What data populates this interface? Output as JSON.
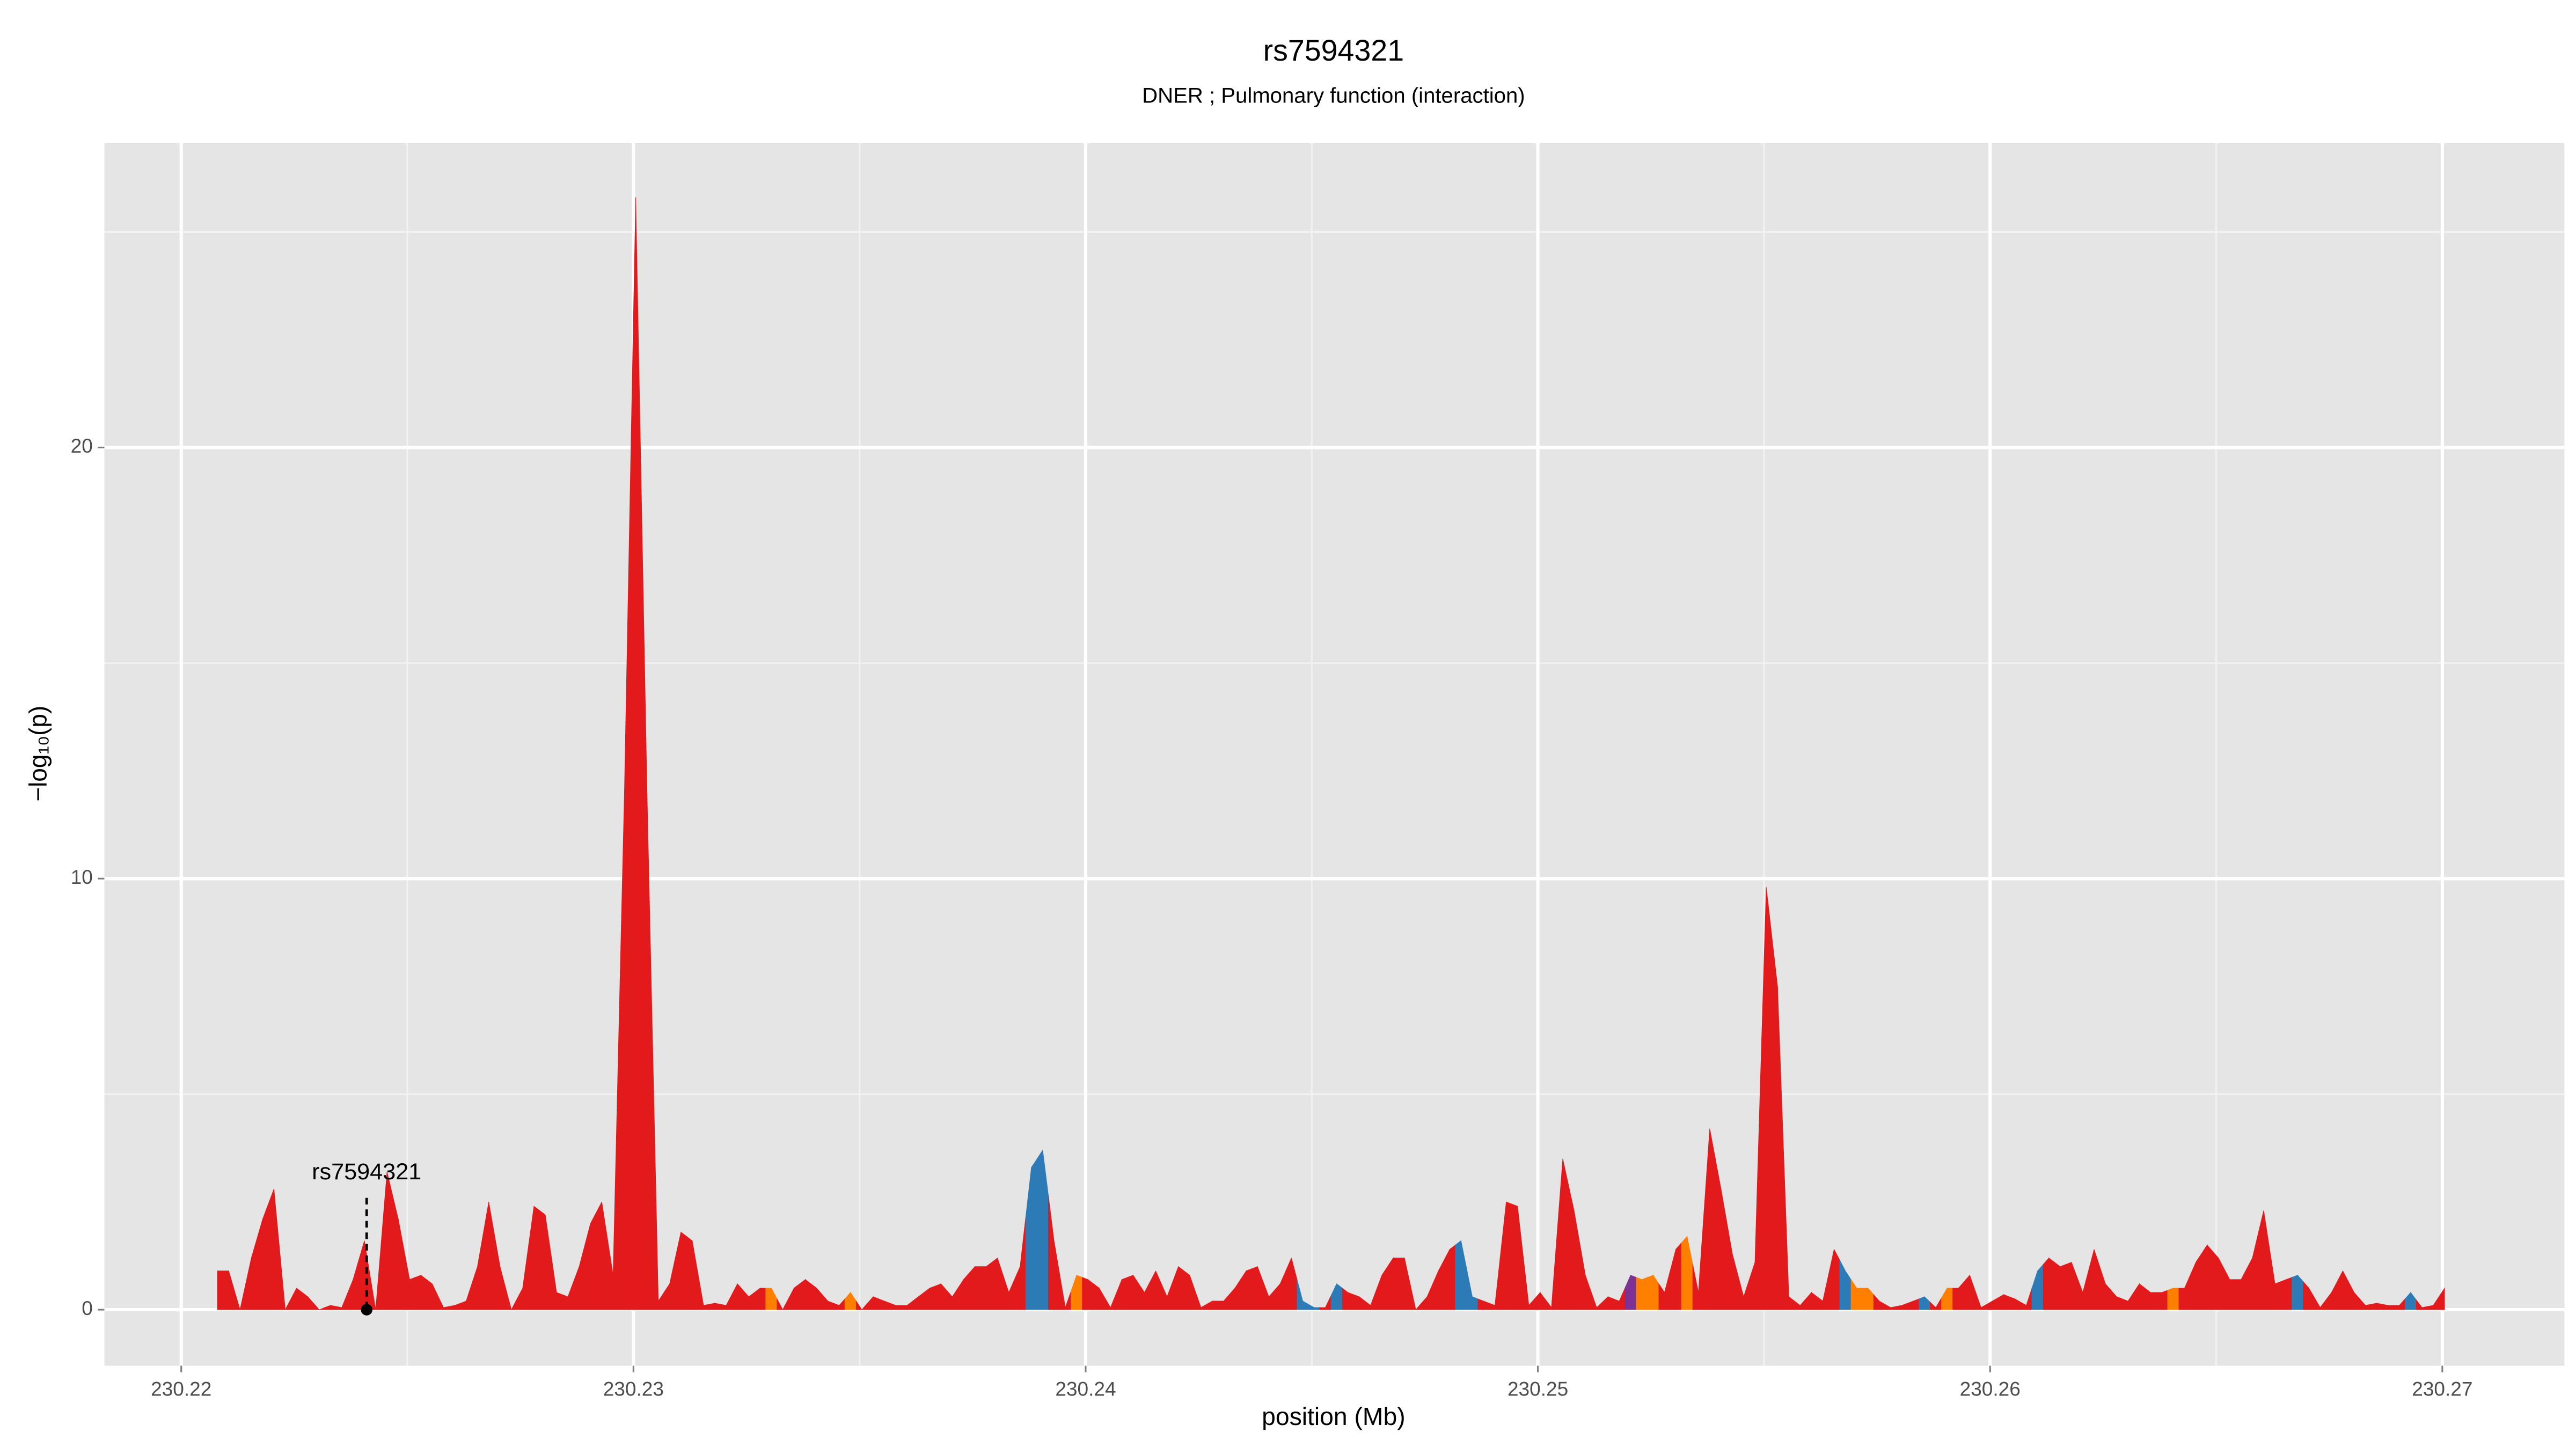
{
  "chart_data": {
    "type": "area",
    "title": "rs7594321",
    "subtitle": "DNER ; Pulmonary function (interaction)",
    "xlabel": "position (Mb)",
    "ylabel": "−log₁₀(p)",
    "xlim": [
      230.2183,
      230.2727
    ],
    "ylim": [
      -1.3,
      27.06
    ],
    "xticks": [
      230.22,
      230.23,
      230.24,
      230.25,
      230.26,
      230.27
    ],
    "yticks": [
      0,
      10,
      20
    ],
    "xminor": [
      230.225,
      230.235,
      230.245,
      230.255,
      230.265
    ],
    "yminor": [
      5,
      15,
      25
    ],
    "grid": true,
    "annotation": {
      "text": "rs7594321",
      "x": 230.2241,
      "y": 0
    },
    "x": [
      230.2208,
      230.22105,
      230.2213,
      230.22155,
      230.2218,
      230.22205,
      230.2223,
      230.22255,
      230.2228,
      230.22305,
      230.2233,
      230.22355,
      230.2238,
      230.22405,
      230.2243,
      230.22455,
      230.2248,
      230.22505,
      230.2253,
      230.22555,
      230.2258,
      230.22605,
      230.2263,
      230.22655,
      230.2268,
      230.22705,
      230.2273,
      230.22755,
      230.2278,
      230.22805,
      230.2283,
      230.22855,
      230.2288,
      230.22905,
      230.2293,
      230.22955,
      230.2298,
      230.23005,
      230.2303,
      230.23055,
      230.2308,
      230.23105,
      230.2313,
      230.23155,
      230.2318,
      230.23205,
      230.2323,
      230.23255,
      230.2328,
      230.23305,
      230.2333,
      230.23355,
      230.2338,
      230.23405,
      230.2343,
      230.23455,
      230.2348,
      230.23505,
      230.2353,
      230.23555,
      230.2358,
      230.23605,
      230.2363,
      230.23655,
      230.2368,
      230.23705,
      230.2373,
      230.23755,
      230.2378,
      230.23805,
      230.2383,
      230.23855,
      230.2388,
      230.23905,
      230.2393,
      230.23955,
      230.2398,
      230.24005,
      230.2403,
      230.24055,
      230.2408,
      230.24105,
      230.2413,
      230.24155,
      230.2418,
      230.24205,
      230.2423,
      230.24255,
      230.2428,
      230.24305,
      230.2433,
      230.24355,
      230.2438,
      230.24405,
      230.2443,
      230.24455,
      230.2448,
      230.24505,
      230.2453,
      230.24555,
      230.2458,
      230.24605,
      230.2463,
      230.24655,
      230.2468,
      230.24705,
      230.2473,
      230.24755,
      230.2478,
      230.24805,
      230.2483,
      230.24855,
      230.2488,
      230.24905,
      230.2493,
      230.24955,
      230.2498,
      230.25005,
      230.2503,
      230.25055,
      230.2508,
      230.25105,
      230.2513,
      230.25155,
      230.2518,
      230.25205,
      230.2523,
      230.25255,
      230.2528,
      230.25305,
      230.2533,
      230.25355,
      230.2538,
      230.25405,
      230.2543,
      230.25455,
      230.2548,
      230.25505,
      230.2553,
      230.25555,
      230.2558,
      230.25605,
      230.2563,
      230.25655,
      230.2568,
      230.25705,
      230.2573,
      230.25755,
      230.2578,
      230.25805,
      230.2583,
      230.25855,
      230.2588,
      230.25905,
      230.2593,
      230.25955,
      230.2598,
      230.26005,
      230.2603,
      230.26055,
      230.2608,
      230.26105,
      230.2613,
      230.26155,
      230.2618,
      230.26205,
      230.2623,
      230.26255,
      230.2628,
      230.26305,
      230.2633,
      230.26355,
      230.2638,
      230.26405,
      230.2643,
      230.26455,
      230.2648,
      230.26505,
      230.2653,
      230.26555,
      230.2658,
      230.26605,
      230.2663,
      230.26655,
      230.2668,
      230.26705,
      230.2673,
      230.26755,
      230.2678,
      230.26805,
      230.2683,
      230.26855,
      230.2688,
      230.26905,
      230.2693,
      230.26955,
      230.2698,
      230.27005
    ],
    "values": [
      0.9,
      0.9,
      0,
      1.2,
      2.1,
      2.8,
      0,
      0.5,
      0.3,
      0,
      0.1,
      0.05,
      0.7,
      1.6,
      0,
      3.2,
      2.1,
      0.7,
      0.8,
      0.6,
      0.05,
      0.1,
      0.2,
      1.0,
      2.5,
      1.0,
      0,
      0.5,
      2.4,
      2.2,
      0.4,
      0.3,
      1.0,
      2.0,
      2.5,
      0.8,
      12,
      25.8,
      12,
      0.2,
      0.6,
      1.8,
      1.6,
      0.1,
      0.15,
      0.1,
      0.6,
      0.3,
      0.5,
      0.5,
      0,
      0.5,
      0.7,
      0.5,
      0.2,
      0.1,
      0.4,
      0,
      0.3,
      0.2,
      0.1,
      0.1,
      0.3,
      0.5,
      0.6,
      0.3,
      0.7,
      1.0,
      1.0,
      1.2,
      0.4,
      1.0,
      3.3,
      3.7,
      1.6,
      0.05,
      0.8,
      0.7,
      0.5,
      0.05,
      0.7,
      0.8,
      0.4,
      0.9,
      0.3,
      1.0,
      0.8,
      0.05,
      0.2,
      0.2,
      0.5,
      0.9,
      1.0,
      0.3,
      0.6,
      1.2,
      0.2,
      0.05,
      0.05,
      0.6,
      0.4,
      0.3,
      0.1,
      0.8,
      1.2,
      1.2,
      0,
      0.3,
      0.9,
      1.4,
      1.6,
      0.3,
      0.2,
      0.1,
      2.5,
      2.4,
      0.1,
      0.4,
      0.05,
      3.5,
      2.3,
      0.8,
      0.05,
      0.3,
      0.2,
      0.8,
      0.7,
      0.8,
      0.4,
      1.4,
      1.7,
      0.4,
      4.2,
      2.8,
      1.3,
      0.3,
      1.1,
      9.8,
      7.5,
      0.3,
      0.1,
      0.4,
      0.2,
      1.4,
      0.9,
      0.5,
      0.5,
      0.2,
      0.05,
      0.1,
      0.2,
      0.3,
      0.05,
      0.5,
      0.5,
      0.8,
      0.05,
      0.2,
      0.35,
      0.25,
      0.1,
      0.9,
      1.2,
      1.0,
      1.1,
      0.4,
      1.4,
      0.6,
      0.3,
      0.2,
      0.6,
      0.4,
      0.4,
      0.5,
      0.5,
      1.1,
      1.5,
      1.2,
      0.7,
      0.7,
      1.2,
      2.3,
      0.6,
      0.7,
      0.8,
      0.5,
      0.05,
      0.4,
      0.9,
      0.4,
      0.1,
      0.15,
      0.1,
      0.1,
      0.4,
      0.05,
      0.1,
      0.5
    ],
    "colors": [
      "#e31a1c",
      "#e31a1c",
      "#e31a1c",
      "#e31a1c",
      "#e31a1c",
      "#e31a1c",
      "#e31a1c",
      "#e31a1c",
      "#e31a1c",
      "#e31a1c",
      "#e31a1c",
      "#e31a1c",
      "#e31a1c",
      "#e31a1c",
      "#e31a1c",
      "#e31a1c",
      "#e31a1c",
      "#e31a1c",
      "#e31a1c",
      "#e31a1c",
      "#e31a1c",
      "#e31a1c",
      "#e31a1c",
      "#e31a1c",
      "#e31a1c",
      "#e31a1c",
      "#e31a1c",
      "#e31a1c",
      "#e31a1c",
      "#e31a1c",
      "#e31a1c",
      "#e31a1c",
      "#e31a1c",
      "#e31a1c",
      "#e31a1c",
      "#e31a1c",
      "#e31a1c",
      "#e31a1c",
      "#e31a1c",
      "#e31a1c",
      "#e31a1c",
      "#e31a1c",
      "#e31a1c",
      "#e31a1c",
      "#e31a1c",
      "#e31a1c",
      "#e31a1c",
      "#e31a1c",
      "#e31a1c",
      "#ff7f00",
      "#e31a1c",
      "#e31a1c",
      "#e31a1c",
      "#e31a1c",
      "#e31a1c",
      "#e31a1c",
      "#ff7f00",
      "#e31a1c",
      "#e31a1c",
      "#e31a1c",
      "#e31a1c",
      "#e31a1c",
      "#e31a1c",
      "#e31a1c",
      "#e31a1c",
      "#e31a1c",
      "#e31a1c",
      "#e31a1c",
      "#e31a1c",
      "#e31a1c",
      "#e31a1c",
      "#e31a1c",
      "#2c7bb6",
      "#2c7bb6",
      "#e31a1c",
      "#e31a1c",
      "#ff7f00",
      "#e31a1c",
      "#e31a1c",
      "#e31a1c",
      "#e31a1c",
      "#e31a1c",
      "#e31a1c",
      "#e31a1c",
      "#e31a1c",
      "#e31a1c",
      "#e31a1c",
      "#e31a1c",
      "#e31a1c",
      "#e31a1c",
      "#e31a1c",
      "#e31a1c",
      "#e31a1c",
      "#e31a1c",
      "#e31a1c",
      "#e31a1c",
      "#2c7bb6",
      "#2c7bb6",
      "#e31a1c",
      "#2c7bb6",
      "#e31a1c",
      "#e31a1c",
      "#e31a1c",
      "#e31a1c",
      "#e31a1c",
      "#e31a1c",
      "#e31a1c",
      "#e31a1c",
      "#e31a1c",
      "#e31a1c",
      "#2c7bb6",
      "#2c7bb6",
      "#e31a1c",
      "#e31a1c",
      "#e31a1c",
      "#e31a1c",
      "#e31a1c",
      "#e31a1c",
      "#e31a1c",
      "#e31a1c",
      "#e31a1c",
      "#e31a1c",
      "#e31a1c",
      "#e31a1c",
      "#e31a1c",
      "#7b3294",
      "#ff7f00",
      "#ff7f00",
      "#e31a1c",
      "#e31a1c",
      "#ff7f00",
      "#e31a1c",
      "#e31a1c",
      "#e31a1c",
      "#e31a1c",
      "#e31a1c",
      "#e31a1c",
      "#e31a1c",
      "#e31a1c",
      "#e31a1c",
      "#e31a1c",
      "#e31a1c",
      "#e31a1c",
      "#e31a1c",
      "#2c7bb6",
      "#ff7f00",
      "#ff7f00",
      "#e31a1c",
      "#e31a1c",
      "#e31a1c",
      "#e31a1c",
      "#2c7bb6",
      "#e31a1c",
      "#ff7f00",
      "#e31a1c",
      "#e31a1c",
      "#e31a1c",
      "#e31a1c",
      "#e31a1c",
      "#e31a1c",
      "#e31a1c",
      "#2c7bb6",
      "#e31a1c",
      "#e31a1c",
      "#e31a1c",
      "#e31a1c",
      "#e31a1c",
      "#e31a1c",
      "#e31a1c",
      "#e31a1c",
      "#e31a1c",
      "#e31a1c",
      "#e31a1c",
      "#ff7f00",
      "#e31a1c",
      "#e31a1c",
      "#e31a1c",
      "#e31a1c",
      "#e31a1c",
      "#e31a1c",
      "#e31a1c",
      "#e31a1c",
      "#e31a1c",
      "#e31a1c",
      "#2c7bb6",
      "#e31a1c",
      "#e31a1c",
      "#e31a1c",
      "#e31a1c",
      "#e31a1c",
      "#e31a1c",
      "#e31a1c",
      "#e31a1c",
      "#e31a1c",
      "#2c7bb6",
      "#e31a1c",
      "#e31a1c",
      "#e31a1c"
    ]
  }
}
